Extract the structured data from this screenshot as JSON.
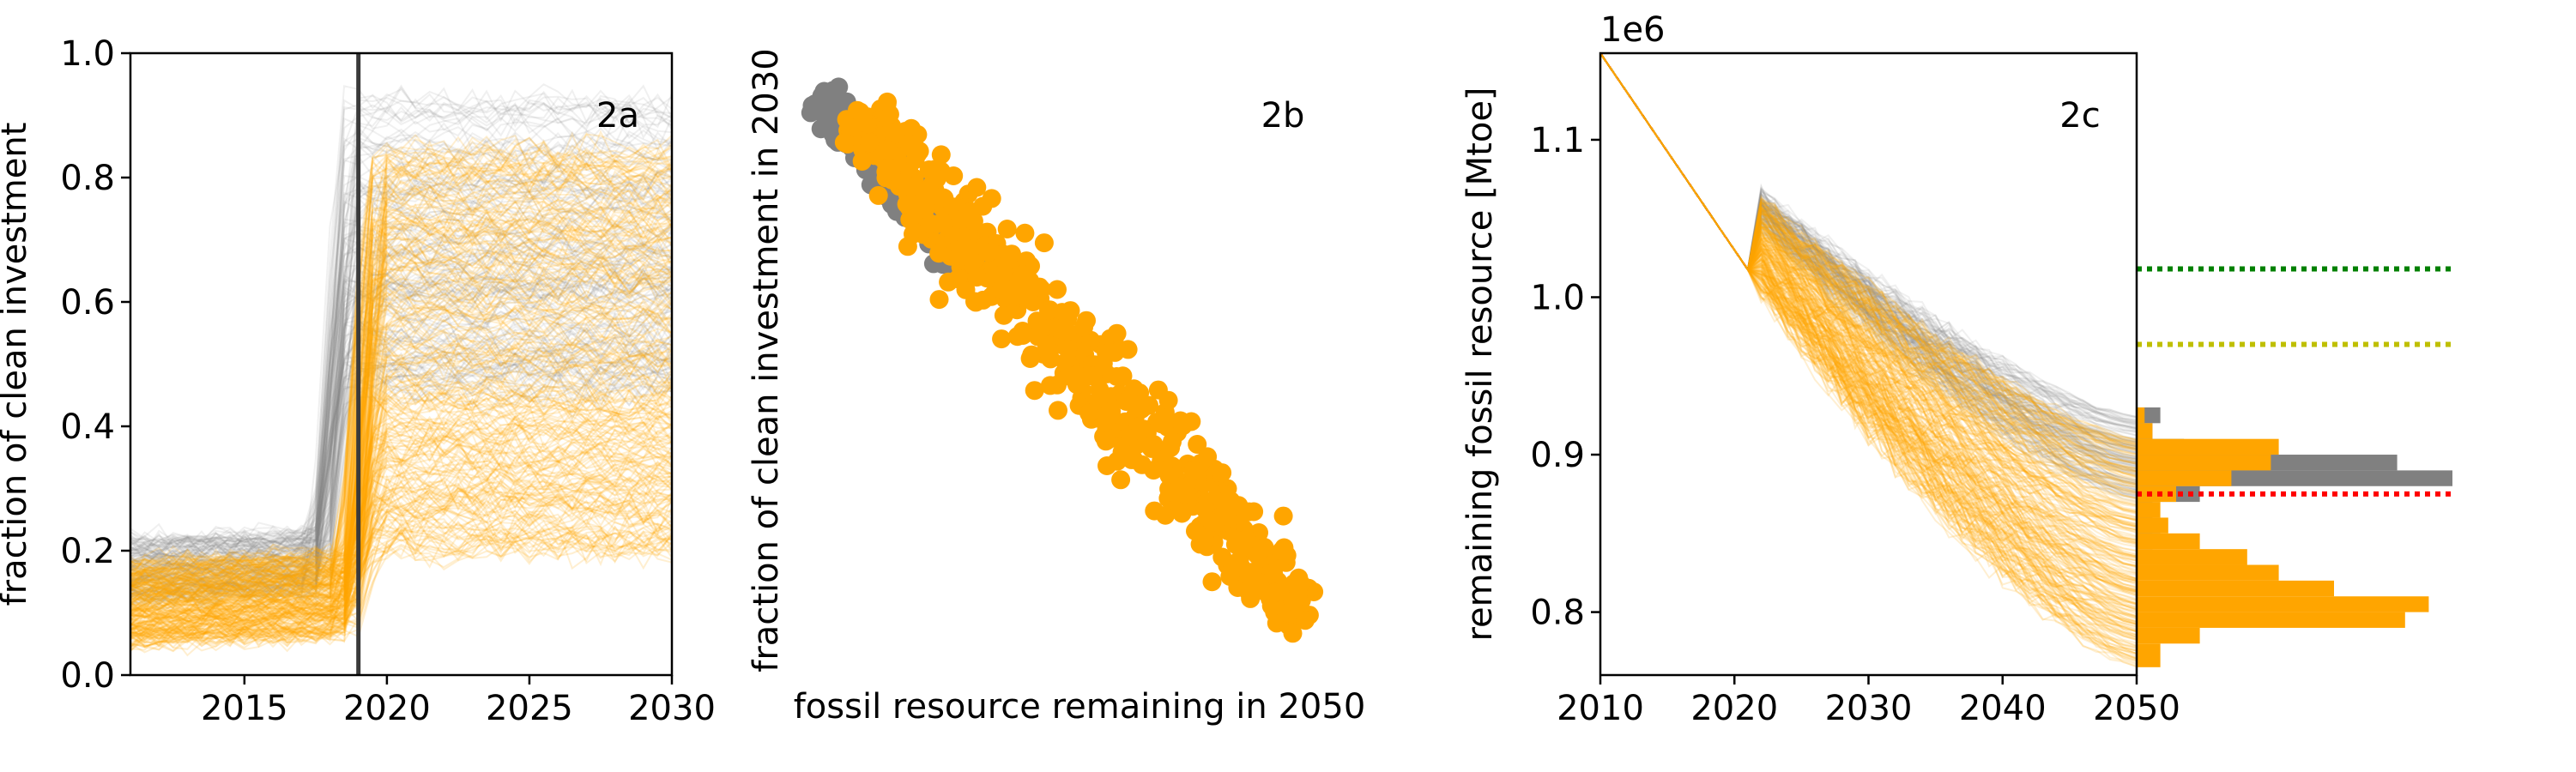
{
  "colors": {
    "orange": "#FFA500",
    "gray": "#808080",
    "green": "#008000",
    "yellowgreen": "#BFBF00",
    "red": "#FF0000",
    "axis": "#000000",
    "divider": "#3a3a3a"
  },
  "chart_data": [
    {
      "panel": "2a",
      "type": "line",
      "ylabel": "fraction of clean investment",
      "xlabel": "",
      "xlim": [
        2011,
        2030
      ],
      "ylim": [
        0.0,
        1.0
      ],
      "xticks": [
        "2015",
        "2020",
        "2025",
        "2030"
      ],
      "yticks": [
        "0.0",
        "0.2",
        "0.4",
        "0.6",
        "0.8",
        "1.0"
      ],
      "vline_x": 2019,
      "series": [
        {
          "color": "gray",
          "before_switch_range": [
            0.12,
            0.22
          ],
          "after_switch_range": [
            0.45,
            0.92
          ],
          "switch_year": 2018
        },
        {
          "color": "orange",
          "before_switch_range": [
            0.05,
            0.18
          ],
          "after_switch_range": [
            0.2,
            0.85
          ],
          "switch_year": 2019
        }
      ]
    },
    {
      "panel": "2b",
      "type": "scatter",
      "xlabel": "fossil resource remaining in 2050",
      "ylabel": "fraction of clean investment in 2030",
      "series": [
        {
          "color": "gray",
          "note": "clustered upper-left"
        },
        {
          "color": "orange",
          "note": "diagonal band from upper-left to lower-right"
        }
      ]
    },
    {
      "panel": "2c",
      "type": "line",
      "ylabel": "remaining fossil resource [Mtoe]",
      "offset_text": "1e6",
      "xlim": [
        2010,
        2050
      ],
      "ylim": [
        0.76,
        1.155
      ],
      "xticks": [
        "2010",
        "2020",
        "2030",
        "2040",
        "2050"
      ],
      "yticks": [
        "0.8",
        "0.9",
        "1.0",
        "1.1"
      ],
      "start_value": 1.155,
      "end_range": {
        "gray": [
          0.87,
          0.925
        ],
        "orange": [
          0.765,
          0.91
        ]
      },
      "reference_lines": [
        {
          "color": "green",
          "y": 1.018
        },
        {
          "color": "yellowgreen",
          "y": 0.97
        },
        {
          "color": "red",
          "y": 0.875
        }
      ],
      "histogram": {
        "bins": [
          0.765,
          0.78,
          0.79,
          0.8,
          0.81,
          0.82,
          0.83,
          0.84,
          0.85,
          0.86,
          0.87,
          0.88,
          0.89,
          0.9,
          0.91,
          0.92,
          0.93
        ],
        "gray_counts": [
          0,
          0,
          0,
          0,
          0,
          0,
          0,
          2,
          3,
          2,
          8,
          40,
          33,
          6,
          2,
          3
        ],
        "orange_counts": [
          3,
          8,
          34,
          37,
          25,
          18,
          14,
          8,
          4,
          3,
          5,
          12,
          17,
          18,
          2,
          1
        ]
      }
    }
  ],
  "panels": {
    "a": "2a",
    "b": "2b",
    "c": "2c"
  }
}
